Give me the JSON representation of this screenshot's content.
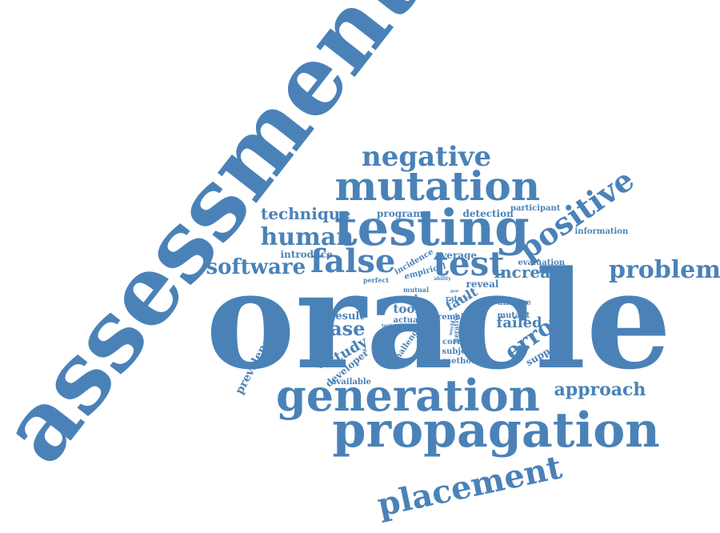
{
  "color": "#4a82b8",
  "words": [
    {
      "id": "oracle",
      "text": "oracle"
    },
    {
      "id": "assessment",
      "text": "assessment"
    },
    {
      "id": "testing",
      "text": "testing"
    },
    {
      "id": "propagation",
      "text": "propagation"
    },
    {
      "id": "generation",
      "text": "generation"
    },
    {
      "id": "mutation",
      "text": "mutation"
    },
    {
      "id": "negative",
      "text": "negative"
    },
    {
      "id": "placement",
      "text": "placement"
    },
    {
      "id": "false",
      "text": "false"
    },
    {
      "id": "test",
      "text": "test"
    },
    {
      "id": "positive",
      "text": "positive"
    },
    {
      "id": "problem",
      "text": "problem"
    },
    {
      "id": "human",
      "text": "human"
    },
    {
      "id": "software",
      "text": "software"
    },
    {
      "id": "technique",
      "text": "technique"
    },
    {
      "id": "approach",
      "text": "approach"
    },
    {
      "id": "case",
      "text": "case"
    },
    {
      "id": "error",
      "text": "error"
    },
    {
      "id": "increase",
      "text": "increase"
    },
    {
      "id": "program",
      "text": "program"
    },
    {
      "id": "detection",
      "text": "detection"
    },
    {
      "id": "participant",
      "text": "participant"
    },
    {
      "id": "information",
      "text": "information"
    },
    {
      "id": "introduce",
      "text": "introduce"
    },
    {
      "id": "incidence",
      "text": "incidence"
    },
    {
      "id": "average",
      "text": "average"
    },
    {
      "id": "empirical",
      "text": "empirical"
    },
    {
      "id": "evaluation",
      "text": "evaluation"
    },
    {
      "id": "fault",
      "text": "fault"
    },
    {
      "id": "reveal",
      "text": "reveal"
    },
    {
      "id": "result",
      "text": "result"
    },
    {
      "id": "tool",
      "text": "tool"
    },
    {
      "id": "real",
      "text": "real"
    },
    {
      "id": "mutual",
      "text": "mutual"
    },
    {
      "id": "study",
      "text": "study"
    },
    {
      "id": "automated",
      "text": "automated"
    },
    {
      "id": "developer",
      "text": "developer"
    },
    {
      "id": "challenge",
      "text": "challenge"
    },
    {
      "id": "actual",
      "text": "actual"
    },
    {
      "id": "failed",
      "text": "failed"
    },
    {
      "id": "mutant",
      "text": "mutant"
    },
    {
      "id": "analyse",
      "text": "analyse"
    },
    {
      "id": "support",
      "text": "support"
    },
    {
      "id": "prevalence",
      "text": "prevalence"
    },
    {
      "id": "available",
      "text": "available"
    },
    {
      "id": "method",
      "text": "method"
    },
    {
      "id": "subject",
      "text": "subject"
    },
    {
      "id": "correct",
      "text": "correct"
    },
    {
      "id": "remain",
      "text": "remain"
    },
    {
      "id": "rate",
      "text": "rate"
    },
    {
      "id": "iterative",
      "text": "iterative"
    },
    {
      "id": "world",
      "text": "world"
    },
    {
      "id": "perfect",
      "text": "perfect"
    },
    {
      "id": "ability",
      "text": "ability"
    },
    {
      "id": "tester",
      "text": "tester"
    },
    {
      "id": "low",
      "text": "low"
    },
    {
      "id": "gen",
      "text": "gen"
    }
  ]
}
